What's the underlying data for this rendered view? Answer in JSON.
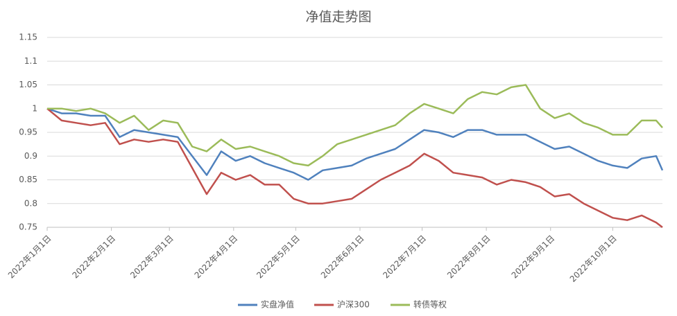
{
  "chart_data": {
    "type": "line",
    "title": "净值走势图",
    "x": [
      "2022-01-01",
      "2022-01-08",
      "2022-01-15",
      "2022-01-22",
      "2022-01-29",
      "2022-02-05",
      "2022-02-12",
      "2022-02-19",
      "2022-02-26",
      "2022-03-05",
      "2022-03-12",
      "2022-03-19",
      "2022-03-26",
      "2022-04-02",
      "2022-04-09",
      "2022-04-16",
      "2022-04-23",
      "2022-04-30",
      "2022-05-07",
      "2022-05-14",
      "2022-05-21",
      "2022-05-28",
      "2022-06-04",
      "2022-06-11",
      "2022-06-18",
      "2022-06-25",
      "2022-07-02",
      "2022-07-09",
      "2022-07-16",
      "2022-07-23",
      "2022-07-30",
      "2022-08-06",
      "2022-08-13",
      "2022-08-20",
      "2022-08-27",
      "2022-09-03",
      "2022-09-10",
      "2022-09-17",
      "2022-09-24",
      "2022-10-01",
      "2022-10-08",
      "2022-10-15",
      "2022-10-22",
      "2022-10-25"
    ],
    "series": [
      {
        "name": "实盘净值",
        "color": "#4f81bd",
        "values": [
          1.0,
          0.99,
          0.99,
          0.985,
          0.985,
          0.94,
          0.955,
          0.95,
          0.945,
          0.94,
          0.9,
          0.86,
          0.91,
          0.89,
          0.9,
          0.885,
          0.875,
          0.865,
          0.85,
          0.87,
          0.875,
          0.88,
          0.895,
          0.905,
          0.915,
          0.935,
          0.955,
          0.95,
          0.94,
          0.955,
          0.955,
          0.945,
          0.945,
          0.945,
          0.93,
          0.915,
          0.92,
          0.905,
          0.89,
          0.88,
          0.875,
          0.895,
          0.9,
          0.87
        ]
      },
      {
        "name": "沪深300",
        "color": "#c0504d",
        "values": [
          1.0,
          0.975,
          0.97,
          0.965,
          0.97,
          0.925,
          0.935,
          0.93,
          0.935,
          0.93,
          0.875,
          0.82,
          0.865,
          0.85,
          0.86,
          0.84,
          0.84,
          0.81,
          0.8,
          0.8,
          0.805,
          0.81,
          0.83,
          0.85,
          0.865,
          0.88,
          0.905,
          0.89,
          0.865,
          0.86,
          0.855,
          0.84,
          0.85,
          0.845,
          0.835,
          0.815,
          0.82,
          0.8,
          0.785,
          0.77,
          0.765,
          0.775,
          0.76,
          0.75
        ]
      },
      {
        "name": "转债等权",
        "color": "#9bbb59",
        "values": [
          1.0,
          1.0,
          0.995,
          1.0,
          0.99,
          0.97,
          0.985,
          0.955,
          0.975,
          0.97,
          0.92,
          0.91,
          0.935,
          0.915,
          0.92,
          0.91,
          0.9,
          0.885,
          0.88,
          0.9,
          0.925,
          0.935,
          0.945,
          0.955,
          0.965,
          0.99,
          1.01,
          1.0,
          0.99,
          1.02,
          1.035,
          1.03,
          1.045,
          1.05,
          1.0,
          0.98,
          0.99,
          0.97,
          0.96,
          0.945,
          0.945,
          0.975,
          0.975,
          0.96
        ]
      }
    ],
    "xlim": [
      "2022-01-01",
      "2022-10-25"
    ],
    "xticks": [
      {
        "value": "2022-01-01",
        "label": "2022年1月1日"
      },
      {
        "value": "2022-02-01",
        "label": "2022年2月1日"
      },
      {
        "value": "2022-03-01",
        "label": "2022年3月1日"
      },
      {
        "value": "2022-04-01",
        "label": "2022年4月1日"
      },
      {
        "value": "2022-05-01",
        "label": "2022年5月1日"
      },
      {
        "value": "2022-06-01",
        "label": "2022年6月1日"
      },
      {
        "value": "2022-07-01",
        "label": "2022年7月1日"
      },
      {
        "value": "2022-08-01",
        "label": "2022年8月1日"
      },
      {
        "value": "2022-09-01",
        "label": "2022年9月1日"
      },
      {
        "value": "2022-10-01",
        "label": "2022年10月1日"
      }
    ],
    "ylim": [
      0.75,
      1.15
    ],
    "yticks": [
      0.75,
      0.8,
      0.85,
      0.9,
      0.95,
      1,
      1.05,
      1.1,
      1.15
    ],
    "grid": true,
    "legend": "bottom"
  }
}
